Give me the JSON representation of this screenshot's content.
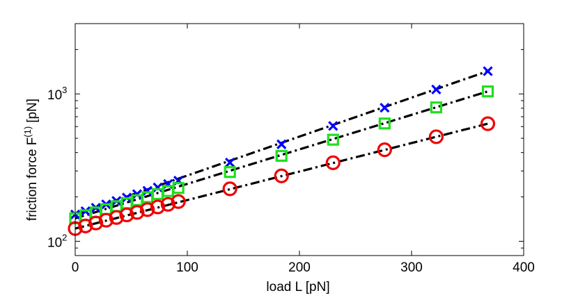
{
  "chart_data": {
    "type": "scatter",
    "xlabel": "load L [pN]",
    "ylabel_main": "friction force F",
    "ylabel_sup": "(1)",
    "ylabel_unit": "[pN]",
    "xlim": [
      0,
      400
    ],
    "ylim": [
      80,
      3000
    ],
    "yscale": "log",
    "grid": false,
    "x_ticks": [
      {
        "value": 0,
        "label": "0"
      },
      {
        "value": 100,
        "label": "100"
      },
      {
        "value": 200,
        "label": "200"
      },
      {
        "value": 300,
        "label": "300"
      },
      {
        "value": 400,
        "label": "400"
      }
    ],
    "y_ticks": [
      {
        "value": 100,
        "base": "10",
        "exp": "2"
      },
      {
        "value": 1000,
        "base": "10",
        "exp": "3"
      }
    ],
    "x": [
      0,
      9.2,
      18.4,
      27.6,
      36.8,
      46,
      55.2,
      64.4,
      73.6,
      82.8,
      92,
      138,
      184,
      230,
      276,
      322,
      368
    ],
    "series": [
      {
        "marker": "x",
        "color": "#0000ff",
        "values": [
          152,
          160,
          169,
          178,
          188,
          198,
          209,
          220,
          232,
          245,
          258,
          342,
          455,
          606,
          806,
          1072,
          1427
        ],
        "fit": {
          "x0": 0,
          "y0": 152,
          "x1": 368,
          "y1": 1427
        }
      },
      {
        "marker": "square",
        "color": "#1fdf1f",
        "values": [
          143,
          150,
          157,
          165,
          173,
          181,
          190,
          199,
          209,
          219,
          230,
          295,
          380,
          489,
          630,
          810,
          1040
        ],
        "fit": {
          "x0": 0,
          "y0": 143,
          "x1": 368,
          "y1": 1040
        }
      },
      {
        "marker": "circle",
        "color": "#ee0000",
        "values": [
          122,
          127,
          133,
          139,
          145,
          151,
          157,
          164,
          171,
          178,
          186,
          227,
          278,
          341,
          418,
          512,
          628
        ],
        "fit": {
          "x0": 0,
          "y0": 122,
          "x1": 368,
          "y1": 628
        }
      }
    ]
  }
}
